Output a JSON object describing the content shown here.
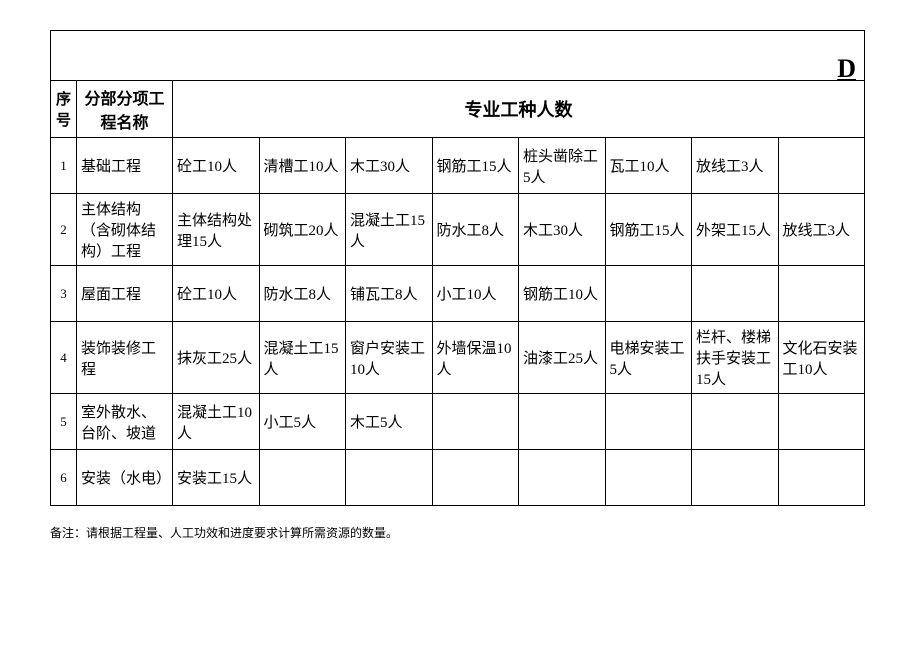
{
  "partial_char": "D",
  "headers": {
    "seq": "序号",
    "name": "分部分项工程名称",
    "workers": "专业工种人数"
  },
  "col_count": 8,
  "rows": [
    {
      "seq": "1",
      "name": "基础工程",
      "cells": [
        "砼工10人",
        "清槽工10人",
        "木工30人",
        "钢筋工15人",
        "桩头凿除工5人",
        "瓦工10人",
        "放线工3人",
        ""
      ]
    },
    {
      "seq": "2",
      "name": "主体结构（含砌体结构）工程",
      "cells": [
        "主体结构处理15人",
        "砌筑工20人",
        "混凝土工15人",
        "防水工8人",
        "木工30人",
        "钢筋工15人",
        "外架工15人",
        "放线工3人"
      ]
    },
    {
      "seq": "3",
      "name": "屋面工程",
      "cells": [
        "砼工10人",
        "防水工8人",
        "铺瓦工8人",
        "小工10人",
        "钢筋工10人",
        "",
        "",
        ""
      ]
    },
    {
      "seq": "4",
      "name": "装饰装修工程",
      "cells": [
        "抹灰工25人",
        "混凝土工15人",
        "窗户安装工10人",
        "外墙保温10人",
        "油漆工25人",
        "电梯安装工5人",
        "栏杆、楼梯扶手安装工15人",
        "文化石安装工10人"
      ]
    },
    {
      "seq": "5",
      "name": "室外散水、台阶、坡道",
      "cells": [
        "混凝土工10人",
        "小工5人",
        "木工5人",
        "",
        "",
        "",
        "",
        ""
      ]
    },
    {
      "seq": "6",
      "name": "安装（水电）",
      "cells": [
        "安装工15人",
        "",
        "",
        "",
        "",
        "",
        "",
        ""
      ]
    }
  ],
  "note": "备注：请根据工程量、人工功效和进度要求计算所需资源的数量。"
}
